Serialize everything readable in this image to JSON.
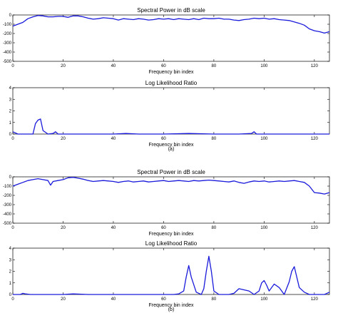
{
  "figure": {
    "caption_a": "(a)",
    "caption_b": "(b)"
  },
  "colors": {
    "series": "#1a1adc",
    "axis": "#000000"
  },
  "chart_data": [
    {
      "type": "line",
      "title": "Spectral Power in dB scale",
      "xlabel": "Frequency bin index",
      "ylabel": "",
      "xlim": [
        0,
        126
      ],
      "ylim": [
        -500,
        0
      ],
      "xticks": [
        0,
        20,
        40,
        60,
        80,
        100,
        120
      ],
      "yticks": [
        0,
        -100,
        -200,
        -300,
        -400,
        -500
      ],
      "grid": false,
      "x": [
        0,
        2,
        4,
        6,
        8,
        10,
        12,
        14,
        16,
        18,
        20,
        22,
        24,
        26,
        28,
        30,
        32,
        34,
        36,
        38,
        40,
        42,
        44,
        46,
        48,
        50,
        52,
        54,
        56,
        58,
        60,
        62,
        64,
        66,
        68,
        70,
        72,
        74,
        76,
        78,
        80,
        82,
        84,
        86,
        88,
        90,
        92,
        94,
        96,
        98,
        100,
        102,
        104,
        106,
        108,
        110,
        112,
        114,
        116,
        118,
        120,
        122,
        124,
        126
      ],
      "series": [
        {
          "values": [
            -120,
            -100,
            -80,
            -40,
            -20,
            -5,
            -10,
            -20,
            -20,
            -15,
            -15,
            -25,
            -10,
            -10,
            -20,
            -35,
            -45,
            -40,
            -30,
            -35,
            -40,
            -55,
            -40,
            -45,
            -50,
            -40,
            -45,
            -55,
            -50,
            -40,
            -45,
            -40,
            -50,
            -40,
            -45,
            -50,
            -40,
            -50,
            -35,
            -40,
            -40,
            -35,
            -45,
            -45,
            -55,
            -60,
            -50,
            -45,
            -35,
            -40,
            -35,
            -45,
            -40,
            -50,
            -55,
            -60,
            -75,
            -90,
            -110,
            -150,
            -170,
            -180,
            -195,
            -180
          ]
        }
      ]
    },
    {
      "type": "line",
      "title": "Log Likelihood Ratio",
      "xlabel": "Frequency bin index",
      "ylabel": "",
      "xlim": [
        0,
        126
      ],
      "ylim": [
        0,
        4
      ],
      "xticks": [
        0,
        20,
        40,
        60,
        80,
        100,
        120
      ],
      "yticks": [
        0,
        1,
        2,
        3,
        4
      ],
      "grid": false,
      "x": [
        0,
        2,
        4,
        6,
        8,
        9,
        10,
        11,
        12,
        14,
        16,
        17,
        18,
        20,
        24,
        30,
        40,
        45,
        50,
        60,
        70,
        80,
        90,
        95,
        96,
        97,
        100,
        110,
        120,
        126
      ],
      "series": [
        {
          "values": [
            0.2,
            0,
            0,
            0,
            0,
            0.9,
            1.2,
            1.3,
            0.3,
            0,
            0.05,
            0.2,
            0,
            0,
            0,
            0,
            0,
            0.05,
            0,
            0,
            0.05,
            0,
            0,
            0.05,
            0.2,
            0,
            0,
            0,
            0,
            0
          ]
        }
      ]
    },
    {
      "type": "line",
      "title": "Spectral Power in dB scale",
      "xlabel": "Frequency bin index",
      "ylabel": "",
      "xlim": [
        0,
        126
      ],
      "ylim": [
        -500,
        0
      ],
      "xticks": [
        0,
        20,
        40,
        60,
        80,
        100,
        120
      ],
      "yticks": [
        0,
        -100,
        -200,
        -300,
        -400,
        -500
      ],
      "grid": false,
      "x": [
        0,
        2,
        4,
        6,
        8,
        10,
        12,
        14,
        15,
        16,
        18,
        20,
        22,
        24,
        26,
        28,
        30,
        32,
        34,
        36,
        38,
        40,
        42,
        44,
        46,
        48,
        50,
        52,
        54,
        56,
        58,
        60,
        62,
        64,
        66,
        68,
        70,
        72,
        74,
        76,
        78,
        80,
        82,
        84,
        86,
        88,
        90,
        92,
        94,
        96,
        98,
        100,
        102,
        104,
        106,
        108,
        110,
        112,
        114,
        116,
        118,
        120,
        122,
        124,
        126
      ],
      "series": [
        {
          "values": [
            -100,
            -80,
            -60,
            -40,
            -30,
            -20,
            -30,
            -40,
            -90,
            -50,
            -40,
            -30,
            -10,
            -5,
            -15,
            -25,
            -40,
            -50,
            -45,
            -40,
            -45,
            -50,
            -60,
            -50,
            -45,
            -55,
            -50,
            -45,
            -55,
            -50,
            -45,
            -40,
            -50,
            -45,
            -40,
            -45,
            -50,
            -40,
            -45,
            -40,
            -35,
            -40,
            -45,
            -50,
            -55,
            -45,
            -60,
            -70,
            -55,
            -45,
            -50,
            -45,
            -55,
            -50,
            -45,
            -50,
            -45,
            -40,
            -50,
            -60,
            -100,
            -170,
            -175,
            -185,
            -170
          ]
        }
      ]
    },
    {
      "type": "line",
      "title": "Log Likelihood Ratio",
      "xlabel": "Frequency bin index",
      "ylabel": "",
      "xlim": [
        0,
        126
      ],
      "ylim": [
        0,
        4
      ],
      "xticks": [
        0,
        20,
        40,
        60,
        80,
        100,
        120
      ],
      "yticks": [
        0,
        1,
        2,
        3,
        4
      ],
      "grid": false,
      "x": [
        0,
        3,
        4,
        5,
        7,
        10,
        20,
        24,
        30,
        40,
        50,
        60,
        62,
        64,
        66,
        68,
        69,
        70,
        71,
        73,
        75,
        76,
        77,
        78,
        79,
        80,
        82,
        86,
        88,
        90,
        92,
        94,
        96,
        98,
        99,
        100,
        101,
        102,
        104,
        106,
        108,
        110,
        111,
        112,
        113,
        114,
        116,
        118,
        120,
        124,
        126
      ],
      "series": [
        {
          "values": [
            0,
            0,
            0.1,
            0.05,
            0,
            0,
            0,
            0.05,
            0,
            0,
            0,
            0,
            0,
            0,
            0.05,
            0.3,
            1.5,
            2.5,
            1.5,
            0.2,
            0,
            0.5,
            2,
            3.3,
            2,
            0.3,
            0,
            0,
            0.1,
            0.5,
            0.4,
            0.3,
            0,
            0.3,
            1,
            1.2,
            0.8,
            0.3,
            0.9,
            0.6,
            0,
            1.1,
            2,
            2.4,
            1.5,
            0.6,
            0.2,
            0,
            0,
            0,
            0.2
          ]
        }
      ]
    }
  ]
}
